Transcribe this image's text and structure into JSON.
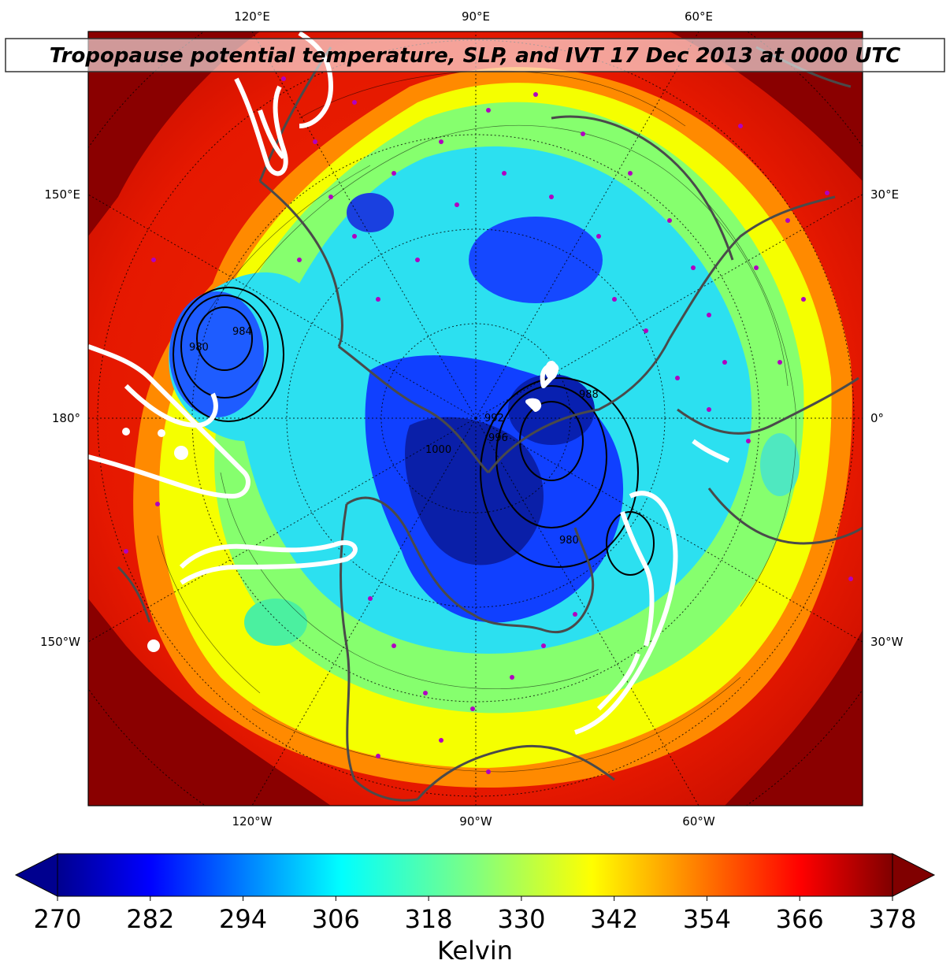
{
  "title": "Tropopause potential temperature, SLP, and IVT 17 Dec 2013 at 0000 UTC",
  "map": {
    "top_labels": [
      "120°E",
      "90°E",
      "60°E"
    ],
    "bottom_labels": [
      "120°W",
      "90°W",
      "60°W"
    ],
    "left_labels": [
      "150°E",
      "180°",
      "150°W"
    ],
    "right_labels": [
      "30°E",
      "0°",
      "30°W"
    ],
    "slp_contour_labels": [
      "980",
      "984",
      "992",
      "1000",
      "988",
      "996",
      "980"
    ],
    "colors": {
      "coldest": "#00008f",
      "cold": "#0030ff",
      "cyan": "#1fd8ff",
      "green": "#7fff7a",
      "yellow": "#f7ff00",
      "orange": "#ff8f00",
      "red": "#ff2000",
      "darkred": "#800000",
      "coastline": "#4a4a4a",
      "ivt": "#ffffff",
      "station": "#b000c0"
    }
  },
  "colorbar": {
    "ticks": [
      "270",
      "282",
      "294",
      "306",
      "318",
      "330",
      "342",
      "354",
      "366",
      "378"
    ],
    "label": "Kelvin",
    "min": 270,
    "max": 378
  }
}
